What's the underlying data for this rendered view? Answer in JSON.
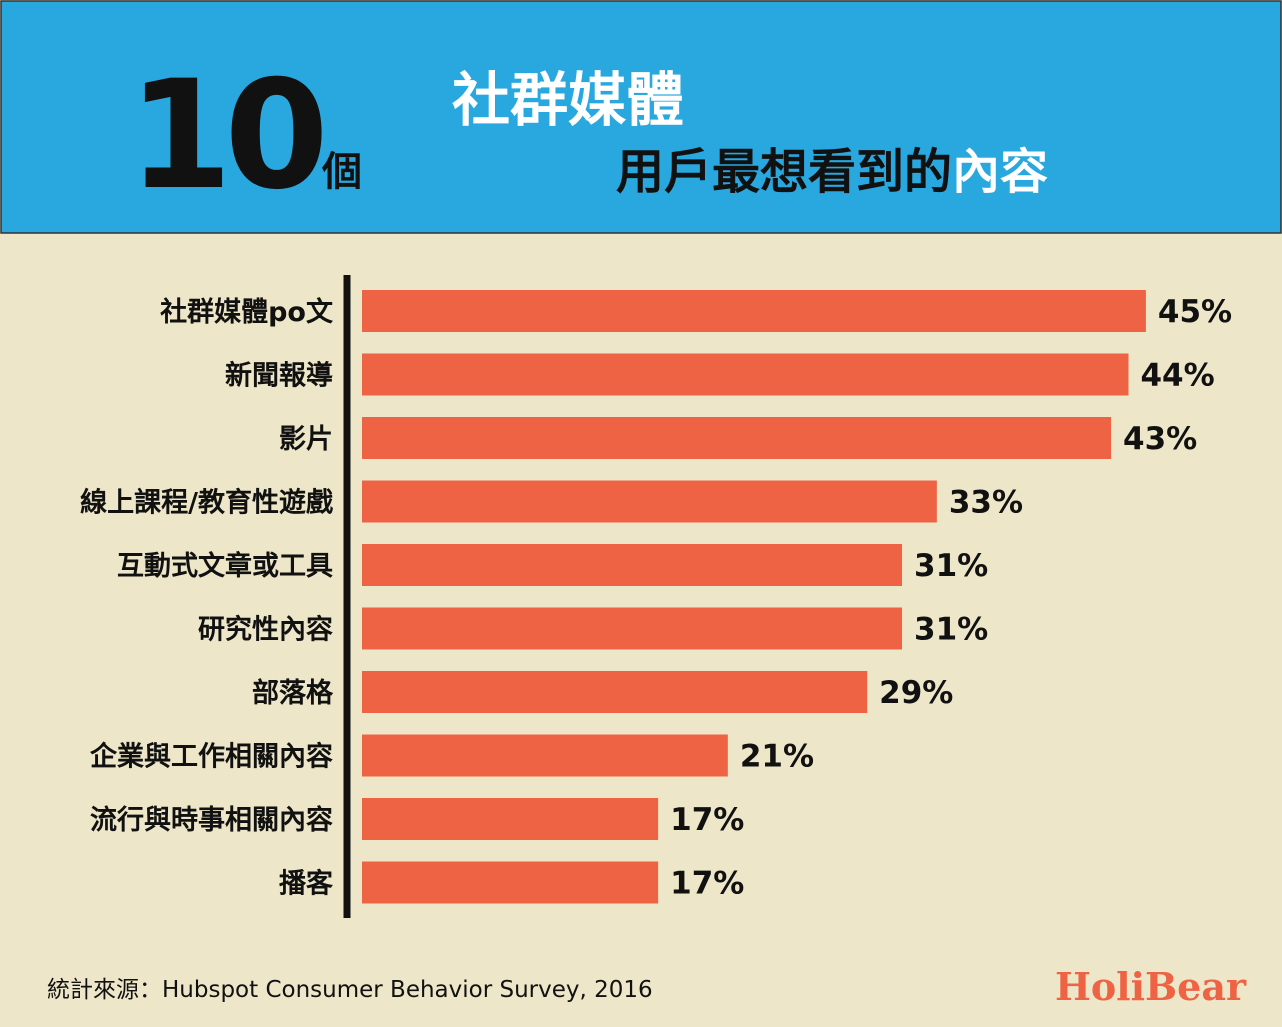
{
  "header": {
    "number": "10",
    "unit": "個",
    "title": "社群媒體",
    "subtitle": "用戶最想看到的",
    "subtitle_highlight": "內容"
  },
  "chart_data": {
    "type": "bar",
    "orientation": "horizontal",
    "categories": [
      "社群媒體po文",
      "新聞報導",
      "影片",
      "線上課程/教育性遊戲",
      "互動式文章或工具",
      "研究性內容",
      "部落格",
      "企業與工作相關內容",
      "流行與時事相關內容",
      "播客"
    ],
    "values": [
      45,
      44,
      43,
      33,
      31,
      31,
      29,
      21,
      17,
      17
    ],
    "value_labels": [
      "45%",
      "44%",
      "43%",
      "33%",
      "31%",
      "31%",
      "29%",
      "21%",
      "17%",
      "17%"
    ],
    "color": "#ee6344"
  },
  "source": "統計來源：Hubspot Consumer Behavior Survey, 2016",
  "brand": "HoliBear"
}
